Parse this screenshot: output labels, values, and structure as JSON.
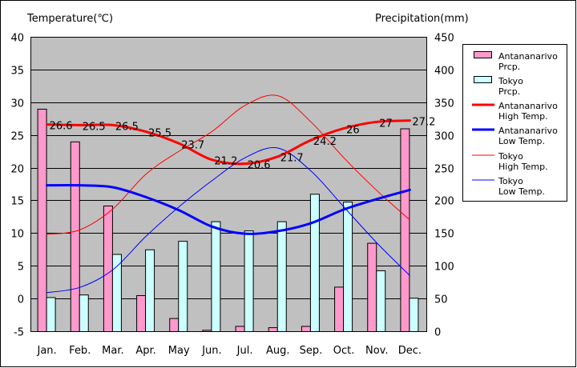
{
  "chart_data": {
    "type": "bar+line",
    "categories": [
      "Jan.",
      "Feb.",
      "Mar.",
      "Apr.",
      "May",
      "Jun.",
      "Jul.",
      "Aug.",
      "Sep.",
      "Oct.",
      "Nov.",
      "Dec."
    ],
    "left_axis": {
      "title": "Temperature(℃)",
      "min": -5,
      "max": 40,
      "step": 5
    },
    "right_axis": {
      "title": "Precipitation(mm)",
      "min": 0,
      "max": 450,
      "step": 50
    },
    "bar_series": [
      {
        "name": "Antananarivo Prcp.",
        "color": "#ff99cc",
        "axis": "right",
        "values": [
          340,
          290,
          192,
          55,
          20,
          2,
          8,
          6,
          8,
          68,
          135,
          310
        ]
      },
      {
        "name": "Tokyo Prcp.",
        "color": "#ccffff",
        "axis": "right",
        "values": [
          52,
          56,
          118,
          125,
          138,
          168,
          154,
          168,
          210,
          198,
          93,
          51
        ]
      }
    ],
    "line_series": [
      {
        "name": "Antananarivo High Temp.",
        "color": "#ff0000",
        "width": 3,
        "axis": "left",
        "values": [
          26.6,
          26.5,
          26.5,
          25.5,
          23.7,
          21.2,
          20.6,
          21.7,
          24.2,
          26,
          27,
          27.2
        ],
        "labels": [
          "26.6",
          "26.5",
          "26.5",
          "25.5",
          "23.7",
          "21.2",
          "20.6",
          "21.7",
          "24.2",
          "26",
          "27",
          "27.2"
        ]
      },
      {
        "name": "Antananarivo Low Temp.",
        "color": "#0000ff",
        "width": 3,
        "axis": "left",
        "values": [
          17.3,
          17.3,
          17.0,
          15.5,
          13.5,
          11.0,
          9.9,
          10.3,
          11.5,
          13.6,
          15.2,
          16.6
        ]
      },
      {
        "name": "Tokyo High Temp.",
        "color": "#ff0000",
        "width": 1,
        "axis": "left",
        "values": [
          9.8,
          10.5,
          13.7,
          19.0,
          22.5,
          25.5,
          29.5,
          31.0,
          27.0,
          21.5,
          16.5,
          12.0
        ]
      },
      {
        "name": "Tokyo Low Temp.",
        "color": "#0000ff",
        "width": 1,
        "axis": "left",
        "values": [
          0.9,
          1.7,
          4.4,
          9.5,
          14.0,
          18.0,
          21.5,
          23.0,
          19.5,
          14.0,
          8.5,
          3.5
        ]
      }
    ],
    "legend": [
      {
        "label": "Antananarivo Prcp.",
        "kind": "bar",
        "color": "#ff99cc"
      },
      {
        "label": "Tokyo Prcp.",
        "kind": "bar",
        "color": "#ccffff"
      },
      {
        "label": "Antananarivo High Temp.",
        "kind": "line",
        "color": "#ff0000",
        "width": 3
      },
      {
        "label": "Antananarivo Low Temp.",
        "kind": "line",
        "color": "#0000ff",
        "width": 3
      },
      {
        "label": "Tokyo High Temp.",
        "kind": "line",
        "color": "#ff0000",
        "width": 1
      },
      {
        "label": "Tokyo Low Temp.",
        "kind": "line",
        "color": "#0000ff",
        "width": 1
      }
    ],
    "legend_placement": "right",
    "grid": true
  }
}
